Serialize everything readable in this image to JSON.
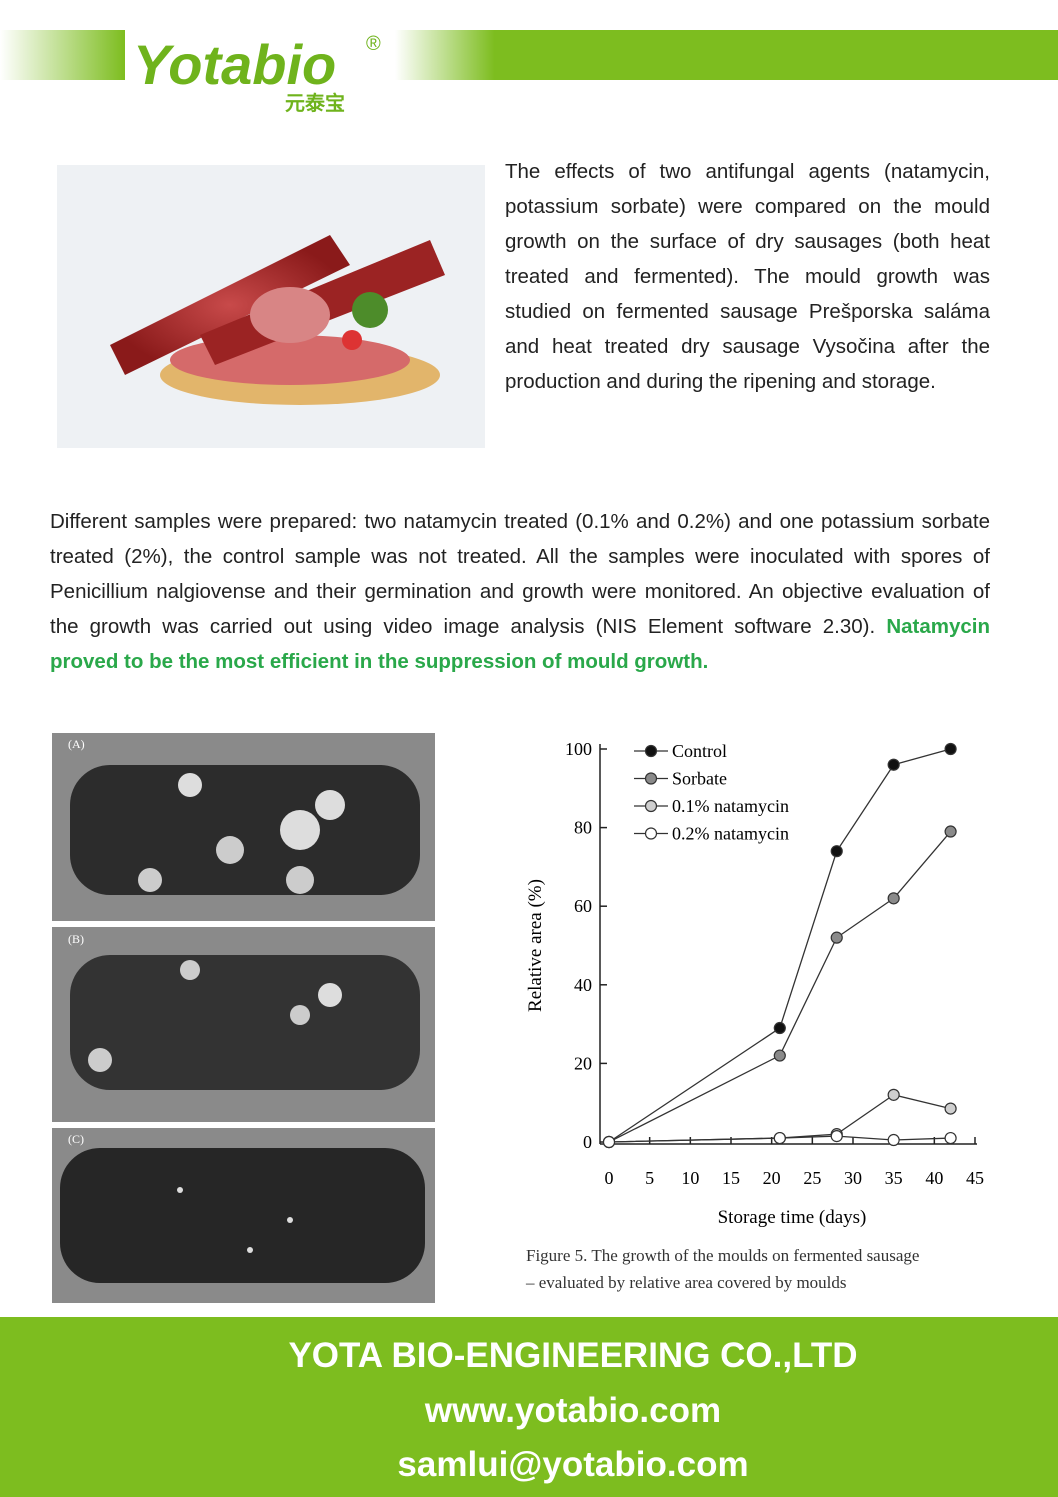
{
  "header": {
    "logo": "Yotabio",
    "registered": "®",
    "chinese_name": "元泰宝"
  },
  "intro": "The effects of two antifungal agents (natamycin, potassium sorbate) were compared on the mould growth on the surface of dry sausages (both heat treated and fermented). The mould growth was studied on fermented sausage Prešporska saláma and heat treated dry sausage Vysočina after the production and during the ripening and storage.",
  "body": {
    "text": "Different samples were prepared: two natamycin treated (0.1% and 0.2%) and one potassium sorbate treated (2%), the control sample was not treated. All the samples were inoculated with spores of Penicillium nalgiovense and their germination and growth were monitored. An objective evaluation of the growth was carried out using video image analysis (NIS Element software 2.30).",
    "highlight": "Natamycin proved to be the most efficient in the suppression of mould growth."
  },
  "photo_labels": [
    "(A)",
    "(B)",
    "(C)"
  ],
  "chart_data": {
    "type": "line",
    "x": [
      0,
      21,
      28,
      35,
      42
    ],
    "series": [
      {
        "name": "Control",
        "color": "#111111",
        "values": [
          0,
          29,
          74,
          96,
          100
        ]
      },
      {
        "name": "Sorbate",
        "color": "#8a8a8a",
        "values": [
          0,
          22,
          52,
          62,
          79
        ]
      },
      {
        "name": "0.1% natamycin",
        "color": "#cfcfcf",
        "values": [
          0,
          1,
          2,
          12,
          8.5
        ]
      },
      {
        "name": "0.2% natamycin",
        "color": "#ffffff",
        "values": [
          0,
          1,
          1.5,
          0.5,
          1
        ]
      }
    ],
    "xlabel": "Storage time (days)",
    "ylabel": "Relative area (%)",
    "xlim": [
      0,
      45
    ],
    "xticks": [
      0,
      5,
      10,
      15,
      20,
      25,
      30,
      35,
      40,
      45
    ],
    "ylim": [
      0,
      100
    ],
    "yticks": [
      0,
      20,
      40,
      60,
      80,
      100
    ],
    "legend": "upper-left",
    "caption": [
      "Figure 5. The growth of the moulds on fermented sausage",
      "– evaluated by relative area covered by moulds"
    ]
  },
  "footer": {
    "company": "YOTA BIO-ENGINEERING CO.,LTD",
    "website": "www.yotabio.com",
    "email": "samlui@yotabio.com"
  }
}
